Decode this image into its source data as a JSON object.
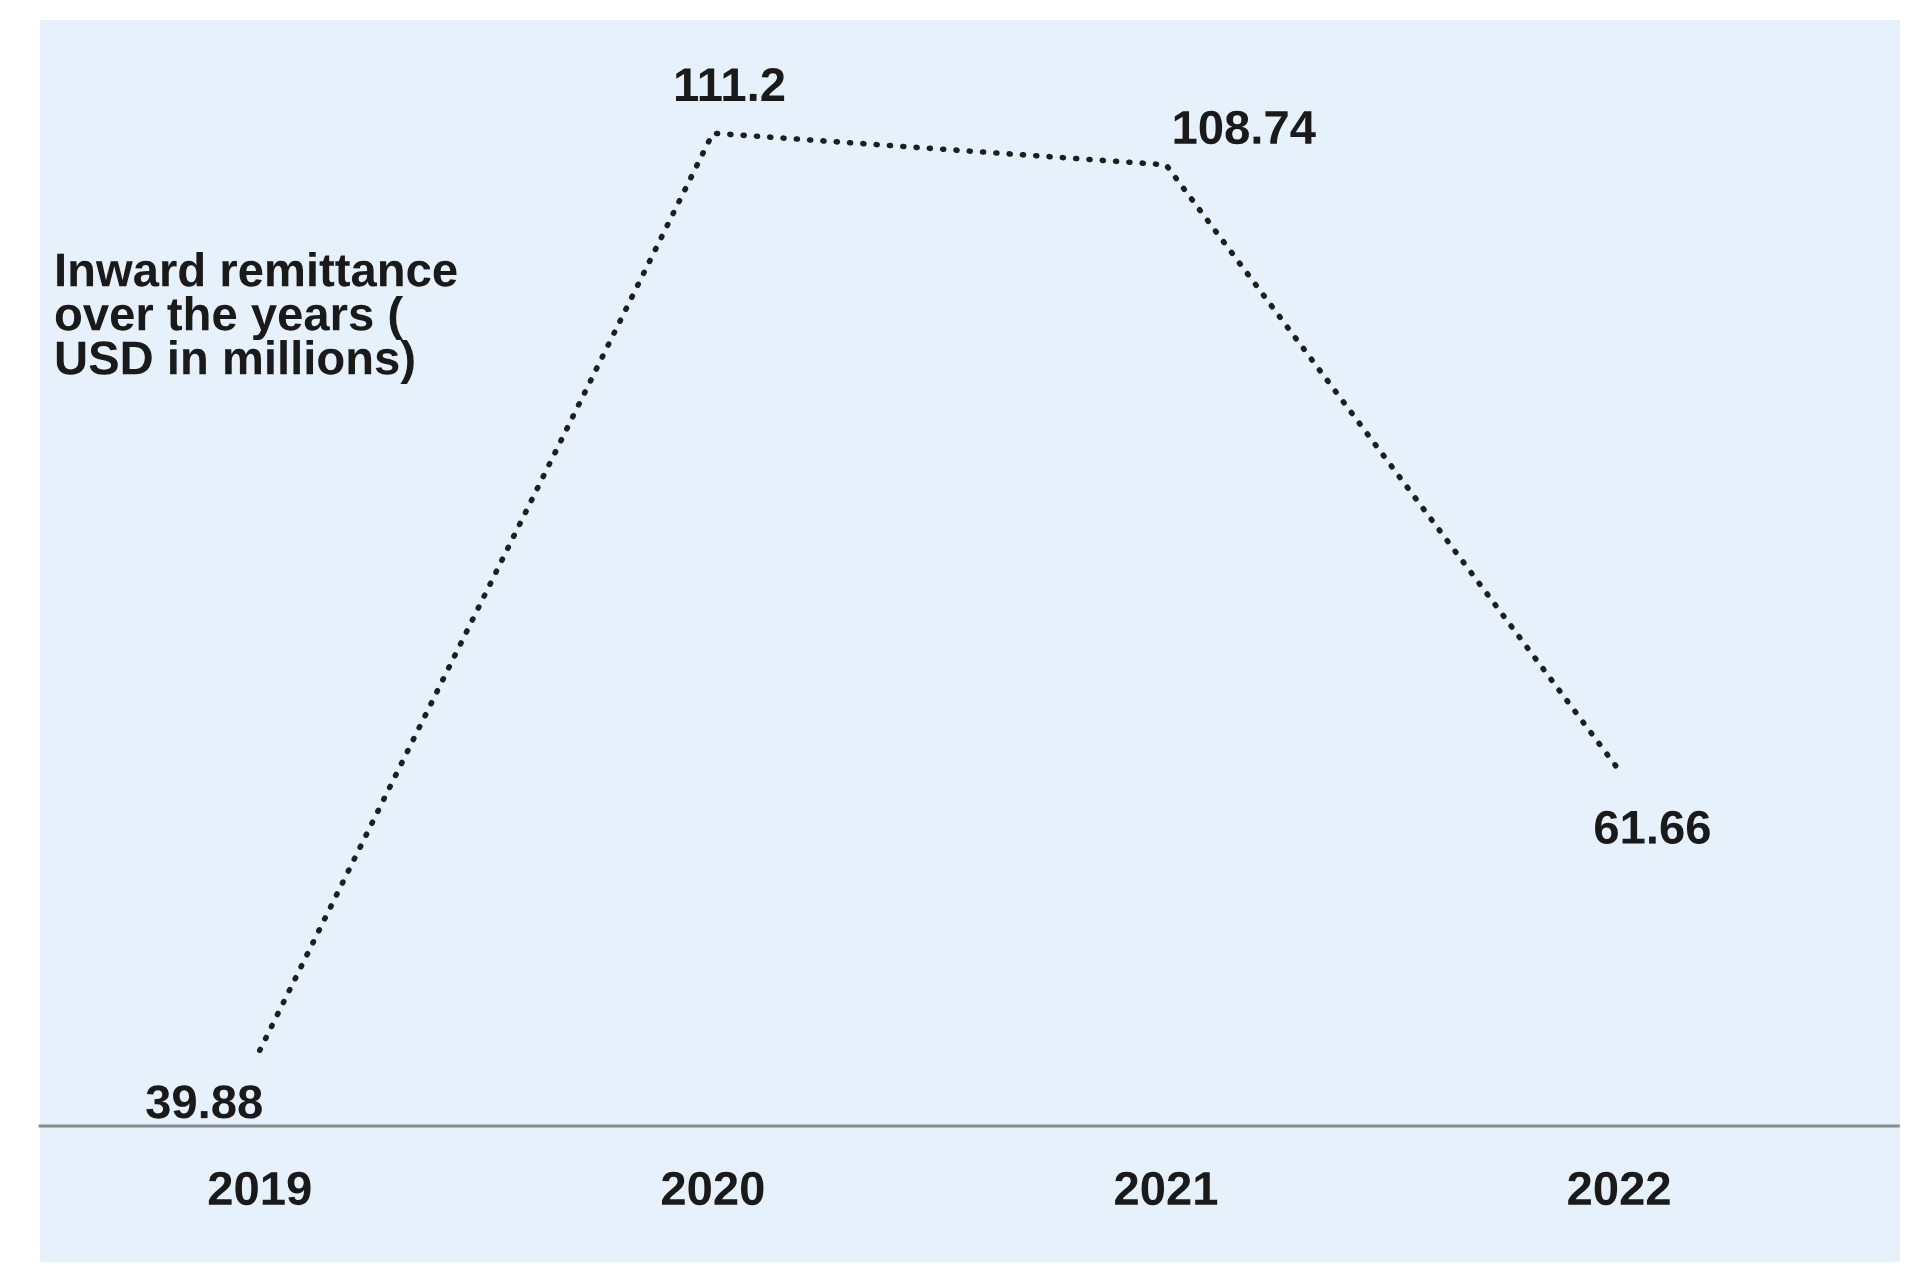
{
  "chart_data": {
    "type": "line",
    "title": "Inward remittance\nover the years (\nUSD in millions)",
    "categories": [
      "2019",
      "2020",
      "2021",
      "2022"
    ],
    "values": [
      39.88,
      111.2,
      108.74,
      61.66
    ],
    "color": "#1e1e1e",
    "ylim": [
      34,
      120
    ],
    "line_style": "dotted",
    "data_labels": true
  }
}
